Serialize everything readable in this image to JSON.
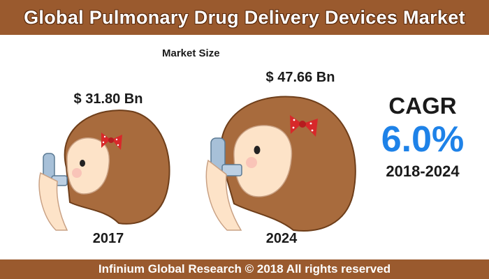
{
  "header": {
    "title": "Global Pulmonary Drug Delivery Devices Market"
  },
  "chart_data": {
    "type": "infographic",
    "subtitle": "Market Size",
    "categories": [
      "2017",
      "2024"
    ],
    "values": [
      31.8,
      47.66
    ],
    "value_labels": [
      "$ 31.80 Bn",
      "$ 47.66 Bn"
    ],
    "cagr": {
      "label": "CAGR",
      "value": "6.0%",
      "period": "2018-2024"
    }
  },
  "colors": {
    "bar": "#9a5a2e",
    "hair": "#a86b3d",
    "skin": "#fde3c8",
    "cagr": "#1e82e8",
    "bow": "#d8282a"
  },
  "footer": {
    "text": "Infinium Global Research © 2018 All rights reserved"
  }
}
